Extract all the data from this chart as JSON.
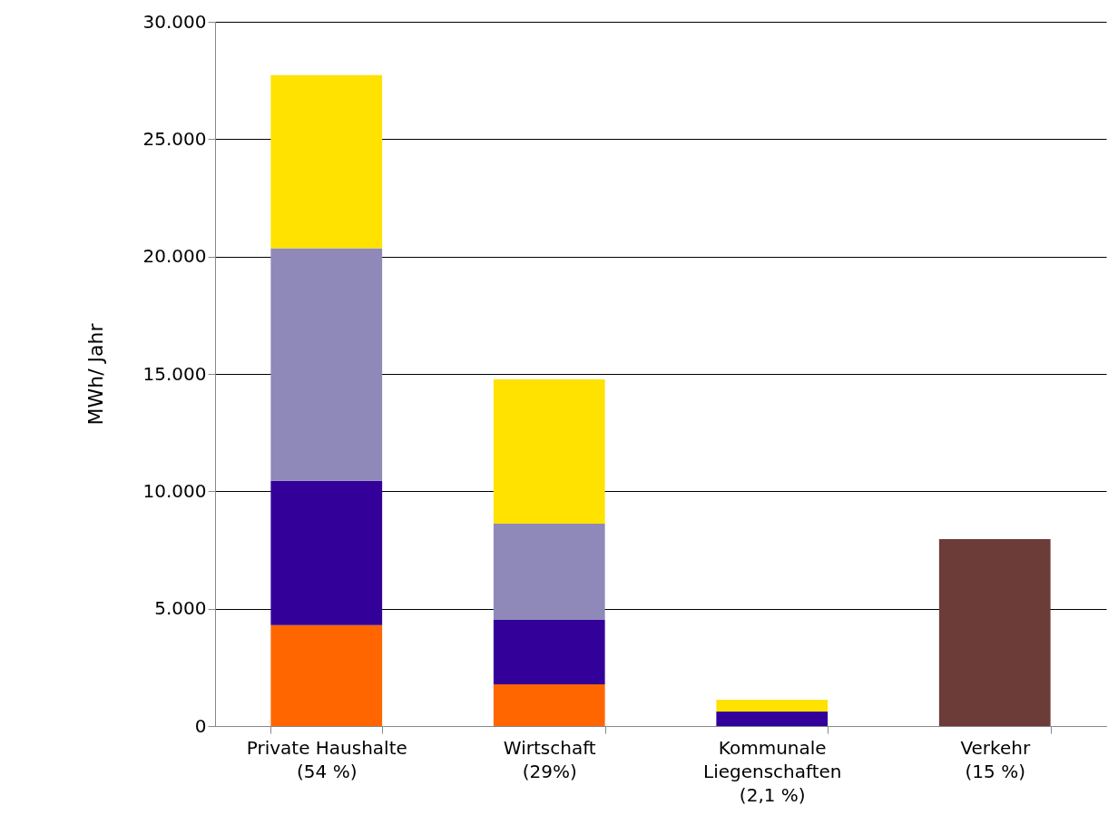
{
  "chart_data": {
    "type": "bar",
    "stacked": true,
    "ylabel": "MWh/ Jahr",
    "categories": [
      "Private Haushalte\n(54 %)",
      "Wirtschaft\n(29%)",
      "Kommunale\nLiegenschaften\n(2,1 %)",
      "Verkehr\n(15 %)"
    ],
    "series": [
      {
        "color": "#ff6600",
        "values": [
          4300,
          1780,
          null,
          null
        ]
      },
      {
        "color": "#330099",
        "values": [
          6150,
          2740,
          620,
          null
        ]
      },
      {
        "color": "#8f89b9",
        "values": [
          9900,
          4100,
          null,
          null
        ]
      },
      {
        "color": "#ffe200",
        "values": [
          7380,
          6150,
          500,
          null
        ]
      },
      {
        "color": "#6b3c38",
        "values": [
          null,
          null,
          null,
          7960
        ]
      }
    ],
    "ylim": [
      0,
      30000
    ],
    "yticks": [
      {
        "value": 0,
        "label": "0"
      },
      {
        "value": 5000,
        "label": "5.000"
      },
      {
        "value": 10000,
        "label": "10.000"
      },
      {
        "value": 15000,
        "label": "15.000"
      },
      {
        "value": 20000,
        "label": "20.000"
      },
      {
        "value": 25000,
        "label": "25.000"
      },
      {
        "value": 30000,
        "label": "30.000"
      }
    ],
    "grid": "y"
  }
}
